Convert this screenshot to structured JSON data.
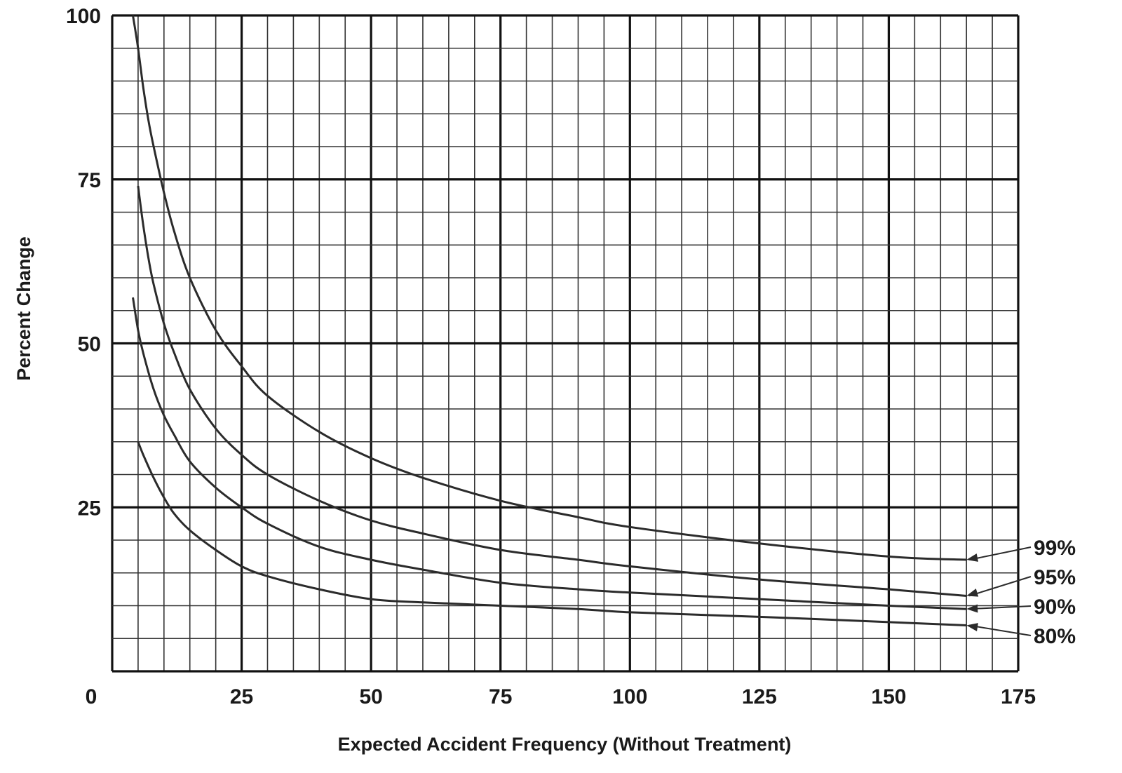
{
  "chart_data": {
    "type": "line",
    "title": "",
    "xlabel": "Expected Accident Frequency (Without Treatment)",
    "ylabel": "Percent Change",
    "xlim": [
      0,
      175
    ],
    "ylim": [
      0,
      100
    ],
    "x_ticks": [
      "0",
      "25",
      "50",
      "75",
      "100",
      "125",
      "150",
      "175"
    ],
    "y_ticks": [
      "25",
      "50",
      "75",
      "100"
    ],
    "grid": true,
    "series": [
      {
        "name": "99%",
        "x": [
          4,
          5,
          6,
          7,
          8,
          10,
          12,
          15,
          20,
          25,
          30,
          40,
          50,
          60,
          75,
          90,
          100,
          125,
          150,
          165
        ],
        "y": [
          100,
          95,
          89,
          84,
          80,
          73,
          67,
          60,
          52,
          46.5,
          42,
          36.5,
          32.5,
          29.5,
          26,
          23.5,
          22,
          19.5,
          17.5,
          17
        ]
      },
      {
        "name": "95%",
        "x": [
          5,
          6,
          7,
          8,
          10,
          12,
          15,
          20,
          25,
          30,
          40,
          50,
          60,
          75,
          90,
          100,
          125,
          150,
          165
        ],
        "y": [
          74,
          68,
          63,
          59,
          53,
          48.5,
          43,
          37,
          33,
          30,
          26,
          23,
          21,
          18.5,
          17,
          16,
          14,
          12.5,
          11.5
        ]
      },
      {
        "name": "90%",
        "x": [
          4,
          5,
          6,
          8,
          10,
          12,
          15,
          20,
          25,
          30,
          40,
          50,
          60,
          75,
          90,
          100,
          125,
          150,
          165
        ],
        "y": [
          57,
          52,
          48.5,
          43,
          39,
          36,
          32,
          28,
          25,
          22.5,
          19,
          17,
          15.5,
          13.5,
          12.5,
          12,
          11,
          10,
          9.5
        ]
      },
      {
        "name": "80%",
        "x": [
          5,
          6,
          8,
          10,
          12,
          15,
          20,
          25,
          30,
          40,
          50,
          60,
          75,
          90,
          100,
          125,
          150,
          165
        ],
        "y": [
          35,
          33,
          29.5,
          26.5,
          24,
          21.5,
          18.5,
          16,
          14.5,
          12.5,
          11,
          10.5,
          10,
          9.5,
          9,
          8.3,
          7.5,
          7
        ]
      }
    ]
  }
}
